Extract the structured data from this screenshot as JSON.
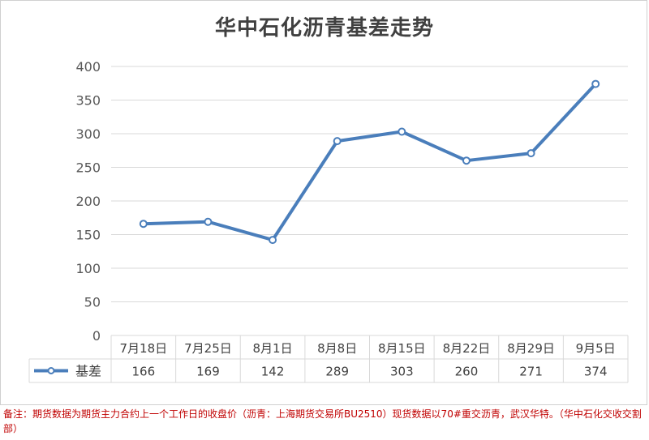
{
  "title": "华中石化沥青基差走势",
  "chart_data": {
    "type": "line",
    "title": "华中石化沥青基差走势",
    "categories": [
      "7月18日",
      "7月25日",
      "8月1日",
      "8月8日",
      "8月15日",
      "8月22日",
      "8月29日",
      "9月5日"
    ],
    "series": [
      {
        "name": "基差",
        "values": [
          166,
          169,
          142,
          289,
          303,
          260,
          271,
          374
        ]
      }
    ],
    "ylim": [
      0,
      400
    ],
    "yticks": [
      0,
      50,
      100,
      150,
      200,
      250,
      300,
      350,
      400
    ],
    "grid": true,
    "legend": "data-table-left",
    "line_color": "#4a7ebb"
  },
  "note": "备注：期货数据为期货主力合约上一个工作日的收盘价（沥青：上海期货交易所BU2510）现货数据以70#重交沥青，武汉华特。（华中石化交收交割部）"
}
